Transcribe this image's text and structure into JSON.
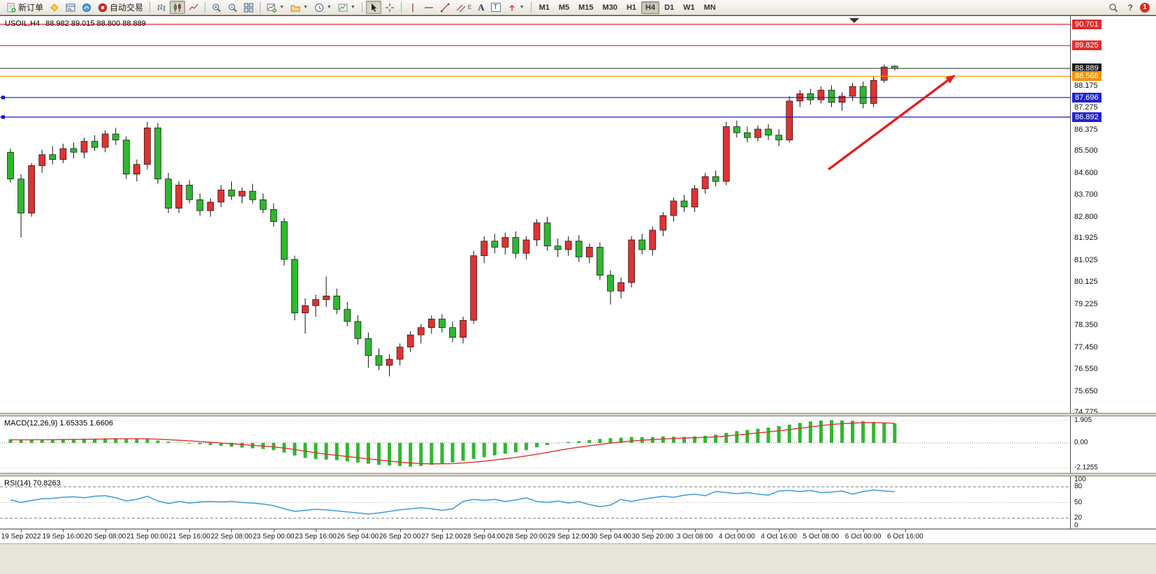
{
  "toolbar": {
    "new_order_label": "新订单",
    "autotrading_label": "自动交易",
    "text_tool_label": "A",
    "text_label_tool_label": "T",
    "channel_tool_label": "E",
    "timeframes": [
      "M1",
      "M5",
      "M15",
      "M30",
      "H1",
      "H4",
      "D1",
      "W1",
      "MN"
    ],
    "active_timeframe": "H4",
    "notification_count": "1",
    "help_glyph": "?"
  },
  "chart_header": {
    "symbol_period": "USOIL,H4",
    "ohlc": "88.982 89.015 88.800 88.889"
  },
  "chart_data": {
    "type": "candlestick",
    "symbol": "USOIL",
    "timeframe": "H4",
    "up_color": "#e03232",
    "down_color": "#2fb82f",
    "wick_color": "#111111",
    "ylim": [
      74.72,
      91.04
    ],
    "price_ticks": [
      "88.175",
      "87.275",
      "86.375",
      "85.500",
      "84.600",
      "83.700",
      "82.800",
      "81.925",
      "81.025",
      "80.125",
      "79.225",
      "78.350",
      "77.450",
      "76.550",
      "75.650",
      "74.775"
    ],
    "current_price": "88.889",
    "levels": [
      {
        "value": "90.701",
        "line_color": "#ff2222",
        "badge_color": "#e62b2b",
        "handle": false
      },
      {
        "value": "89.825",
        "line_color": "#ff2222",
        "badge_color": "#e62b2b",
        "handle": false
      },
      {
        "value": "88.889",
        "line_color": "#4d4d4d",
        "badge_color": "#1c1c1c",
        "handle": false
      },
      {
        "value": "88.568",
        "line_color": "#ff9900",
        "badge_color": "#f59300",
        "handle": false
      },
      {
        "value": "87.696",
        "line_color": "#1414cc",
        "badge_color": "#2222cc",
        "handle": true
      },
      {
        "value": "86.892",
        "line_color": "#1414cc",
        "badge_color": "#2222cc",
        "handle": true
      }
    ],
    "annotation_arrow": {
      "color": "#e81e1e"
    },
    "x_labels": [
      "19 Sep 2022",
      "19 Sep 16:00",
      "20 Sep 08:00",
      "21 Sep 00:00",
      "21 Sep 16:00",
      "22 Sep 08:00",
      "23 Sep 00:00",
      "23 Sep 16:00",
      "26 Sep 04:00",
      "26 Sep 20:00",
      "27 Sep 12:00",
      "28 Sep 04:00",
      "28 Sep 20:00",
      "29 Sep 12:00",
      "30 Sep 04:00",
      "30 Sep 20:00",
      "3 Oct 08:00",
      "4 Oct 00:00",
      "4 Oct 16:00",
      "5 Oct 08:00",
      "6 Oct 00:00",
      "6 Oct 16:00"
    ],
    "x_label_start_index": 1,
    "x_label_step": 4,
    "ohlc": [
      [
        85.45,
        85.6,
        84.2,
        84.35
      ],
      [
        84.35,
        84.55,
        81.95,
        82.95
      ],
      [
        82.95,
        85.0,
        82.8,
        84.9
      ],
      [
        84.9,
        85.55,
        84.6,
        85.35
      ],
      [
        85.35,
        85.7,
        84.95,
        85.15
      ],
      [
        85.15,
        85.8,
        85.0,
        85.6
      ],
      [
        85.6,
        85.85,
        85.2,
        85.45
      ],
      [
        85.45,
        86.05,
        85.2,
        85.9
      ],
      [
        85.9,
        86.15,
        85.5,
        85.65
      ],
      [
        85.65,
        86.35,
        85.45,
        86.2
      ],
      [
        86.2,
        86.45,
        85.75,
        85.95
      ],
      [
        85.95,
        86.1,
        84.35,
        84.55
      ],
      [
        84.55,
        85.15,
        84.25,
        84.95
      ],
      [
        84.95,
        86.7,
        84.75,
        86.45
      ],
      [
        86.45,
        86.65,
        84.15,
        84.35
      ],
      [
        84.35,
        84.6,
        82.95,
        83.15
      ],
      [
        83.15,
        84.25,
        82.95,
        84.1
      ],
      [
        84.1,
        84.3,
        83.35,
        83.5
      ],
      [
        83.5,
        83.75,
        82.85,
        83.05
      ],
      [
        83.05,
        83.55,
        82.8,
        83.4
      ],
      [
        83.4,
        84.1,
        83.2,
        83.9
      ],
      [
        83.9,
        84.25,
        83.5,
        83.65
      ],
      [
        83.65,
        84.0,
        83.35,
        83.85
      ],
      [
        83.85,
        84.15,
        83.35,
        83.5
      ],
      [
        83.5,
        83.75,
        82.95,
        83.1
      ],
      [
        83.1,
        83.35,
        82.4,
        82.6
      ],
      [
        82.6,
        82.75,
        80.8,
        81.05
      ],
      [
        81.05,
        81.2,
        78.55,
        78.85
      ],
      [
        78.85,
        79.45,
        78.0,
        79.15
      ],
      [
        79.15,
        79.6,
        78.7,
        79.4
      ],
      [
        79.4,
        80.35,
        79.1,
        79.55
      ],
      [
        79.55,
        79.85,
        78.8,
        79.0
      ],
      [
        79.0,
        79.3,
        78.3,
        78.5
      ],
      [
        78.5,
        78.75,
        77.55,
        77.8
      ],
      [
        77.8,
        78.05,
        76.6,
        77.1
      ],
      [
        77.1,
        77.4,
        76.5,
        76.7
      ],
      [
        76.7,
        77.15,
        76.25,
        76.95
      ],
      [
        76.95,
        77.6,
        76.7,
        77.45
      ],
      [
        77.45,
        78.1,
        77.25,
        77.95
      ],
      [
        77.95,
        78.4,
        77.6,
        78.25
      ],
      [
        78.25,
        78.75,
        78.0,
        78.6
      ],
      [
        78.6,
        78.8,
        78.05,
        78.25
      ],
      [
        78.25,
        78.5,
        77.65,
        77.85
      ],
      [
        77.85,
        78.7,
        77.6,
        78.55
      ],
      [
        78.55,
        81.4,
        78.4,
        81.2
      ],
      [
        81.2,
        82.0,
        80.9,
        81.8
      ],
      [
        81.8,
        82.1,
        81.3,
        81.55
      ],
      [
        81.55,
        82.15,
        81.25,
        81.95
      ],
      [
        81.95,
        82.2,
        81.1,
        81.3
      ],
      [
        81.3,
        82.0,
        81.05,
        81.85
      ],
      [
        81.85,
        82.7,
        81.6,
        82.55
      ],
      [
        82.55,
        82.8,
        81.4,
        81.6
      ],
      [
        81.6,
        81.9,
        81.15,
        81.45
      ],
      [
        81.45,
        82.0,
        81.2,
        81.8
      ],
      [
        81.8,
        82.05,
        80.95,
        81.15
      ],
      [
        81.15,
        81.7,
        80.9,
        81.55
      ],
      [
        81.55,
        81.75,
        80.2,
        80.4
      ],
      [
        80.4,
        80.6,
        79.2,
        79.75
      ],
      [
        79.75,
        80.3,
        79.45,
        80.1
      ],
      [
        80.1,
        82.0,
        79.9,
        81.85
      ],
      [
        81.85,
        82.1,
        81.25,
        81.45
      ],
      [
        81.45,
        82.4,
        81.2,
        82.25
      ],
      [
        82.25,
        83.0,
        82.0,
        82.85
      ],
      [
        82.85,
        83.6,
        82.6,
        83.45
      ],
      [
        83.45,
        83.7,
        83.0,
        83.2
      ],
      [
        83.2,
        84.1,
        83.0,
        83.95
      ],
      [
        83.95,
        84.6,
        83.75,
        84.45
      ],
      [
        84.45,
        84.7,
        84.05,
        84.25
      ],
      [
        84.25,
        86.7,
        84.1,
        86.5
      ],
      [
        86.5,
        86.75,
        86.05,
        86.25
      ],
      [
        86.25,
        86.5,
        85.85,
        86.05
      ],
      [
        86.05,
        86.55,
        85.9,
        86.4
      ],
      [
        86.4,
        86.6,
        85.95,
        86.15
      ],
      [
        86.15,
        86.4,
        85.7,
        85.95
      ],
      [
        85.95,
        87.75,
        85.85,
        87.55
      ],
      [
        87.55,
        88.0,
        87.3,
        87.85
      ],
      [
        87.85,
        88.05,
        87.4,
        87.6
      ],
      [
        87.6,
        88.15,
        87.45,
        88.0
      ],
      [
        88.0,
        88.2,
        87.3,
        87.5
      ],
      [
        87.5,
        87.9,
        87.15,
        87.75
      ],
      [
        87.75,
        88.3,
        87.55,
        88.15
      ],
      [
        88.15,
        88.35,
        87.25,
        87.45
      ],
      [
        87.45,
        88.55,
        87.3,
        88.4
      ],
      [
        88.4,
        89.05,
        88.3,
        88.95
      ],
      [
        88.982,
        89.015,
        88.8,
        88.889
      ]
    ],
    "macd": {
      "label": "MACD(12,26,9) 1.65335 1.6606",
      "ticks": [
        "1.905",
        "0.00",
        "-2.1255"
      ],
      "tick_values": [
        1.905,
        0,
        -2.1255
      ],
      "ylim": [
        -2.55,
        2.25
      ],
      "hist_color": "#2fb82f",
      "signal_color": "#e03232",
      "histogram": [
        0.3,
        0.28,
        0.26,
        0.28,
        0.3,
        0.32,
        0.33,
        0.35,
        0.36,
        0.38,
        0.4,
        0.38,
        0.33,
        0.3,
        0.2,
        0.1,
        0.02,
        -0.06,
        -0.12,
        -0.18,
        -0.25,
        -0.33,
        -0.4,
        -0.46,
        -0.52,
        -0.62,
        -0.82,
        -1.08,
        -1.28,
        -1.38,
        -1.42,
        -1.47,
        -1.57,
        -1.67,
        -1.77,
        -1.87,
        -1.92,
        -1.97,
        -2.02,
        -1.97,
        -1.87,
        -1.77,
        -1.66,
        -1.52,
        -1.37,
        -1.22,
        -1.06,
        -0.92,
        -0.8,
        -0.62,
        -0.38,
        -0.18,
        -0.02,
        0.08,
        0.15,
        0.24,
        0.34,
        0.4,
        0.44,
        0.5,
        0.48,
        0.5,
        0.55,
        0.52,
        0.5,
        0.55,
        0.6,
        0.7,
        0.85,
        1.0,
        1.1,
        1.2,
        1.3,
        1.42,
        1.55,
        1.7,
        1.82,
        1.9,
        1.93,
        1.9,
        1.87,
        1.83,
        1.78,
        1.72,
        1.65335
      ],
      "signal": [
        0.26,
        0.26,
        0.26,
        0.27,
        0.27,
        0.28,
        0.29,
        0.3,
        0.31,
        0.33,
        0.34,
        0.35,
        0.35,
        0.34,
        0.31,
        0.27,
        0.22,
        0.17,
        0.11,
        0.05,
        -0.01,
        -0.08,
        -0.14,
        -0.21,
        -0.27,
        -0.34,
        -0.44,
        -0.57,
        -0.71,
        -0.84,
        -0.96,
        -1.06,
        -1.16,
        -1.26,
        -1.36,
        -1.46,
        -1.55,
        -1.64,
        -1.71,
        -1.76,
        -1.78,
        -1.78,
        -1.76,
        -1.71,
        -1.64,
        -1.56,
        -1.46,
        -1.35,
        -1.24,
        -1.11,
        -0.97,
        -0.81,
        -0.65,
        -0.5,
        -0.37,
        -0.25,
        -0.13,
        -0.02,
        0.07,
        0.16,
        0.22,
        0.28,
        0.33,
        0.37,
        0.4,
        0.43,
        0.46,
        0.51,
        0.58,
        0.66,
        0.75,
        0.84,
        0.93,
        1.03,
        1.13,
        1.24,
        1.36,
        1.47,
        1.56,
        1.63,
        1.68,
        1.71,
        1.72,
        1.7,
        1.6606
      ]
    },
    "rsi": {
      "label": "RSI(14) 70.8263",
      "ticks": [
        "100",
        "80",
        "50",
        "20",
        "0"
      ],
      "tick_values": [
        100,
        80,
        50,
        20,
        0
      ],
      "levels": [
        80,
        50,
        20
      ],
      "ylim": [
        0,
        100
      ],
      "line_color": "#3d9bd5",
      "values": [
        55,
        50,
        54,
        57,
        58,
        60,
        61,
        59,
        62,
        63,
        59,
        53,
        56,
        62,
        53,
        48,
        52,
        49,
        51,
        52,
        51,
        52,
        50,
        49,
        47,
        44,
        38,
        33,
        35,
        37,
        36,
        34,
        32,
        30,
        28,
        30,
        33,
        36,
        38,
        40,
        38,
        35,
        38,
        52,
        56,
        54,
        56,
        52,
        55,
        59,
        52,
        50,
        53,
        49,
        52,
        46,
        42,
        45,
        56,
        52,
        56,
        59,
        62,
        60,
        64,
        66,
        63,
        71,
        69,
        67,
        69,
        66,
        64,
        72,
        73,
        71,
        73,
        69,
        70,
        72,
        66,
        71,
        74,
        72,
        70.8263
      ]
    }
  }
}
